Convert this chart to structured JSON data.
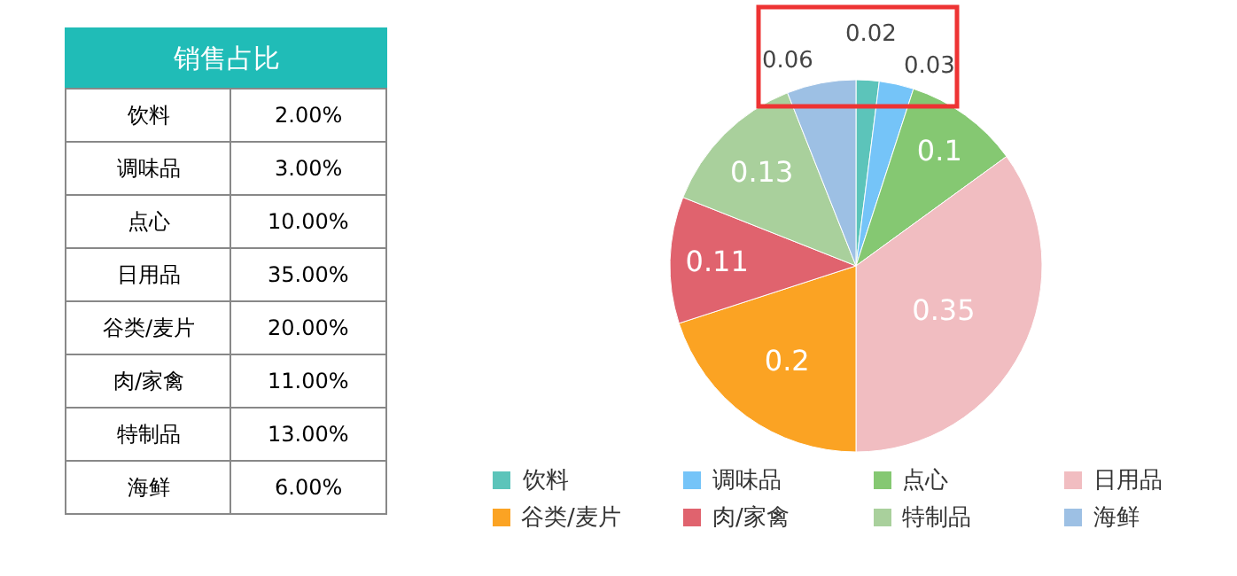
{
  "chart_data": [
    {
      "type": "other",
      "title": "销售占比",
      "color": "#20bcb7",
      "categories": [
        "饮料",
        "调味品",
        "点心",
        "日用品",
        "谷类/麦片",
        "肉/家禽",
        "特制品",
        "海鲜"
      ],
      "value_labels": [
        "2.00%",
        "3.00%",
        "10.00%",
        "35.00%",
        "20.00%",
        "11.00%",
        "13.00%",
        "6.00%"
      ]
    },
    {
      "type": "pie",
      "categories": [
        "饮料",
        "调味品",
        "点心",
        "日用品",
        "谷类/麦片",
        "肉/家禽",
        "特制品",
        "海鲜"
      ],
      "values": [
        0.02,
        0.03,
        0.1,
        0.35,
        0.2,
        0.11,
        0.13,
        0.06
      ],
      "colors": [
        "#5cc4ba",
        "#75c4f8",
        "#85c872",
        "#f1bdc1",
        "#fba323",
        "#e0636e",
        "#a9d09c",
        "#9dc0e4"
      ],
      "data_labels": true,
      "legend": "bottom"
    }
  ]
}
